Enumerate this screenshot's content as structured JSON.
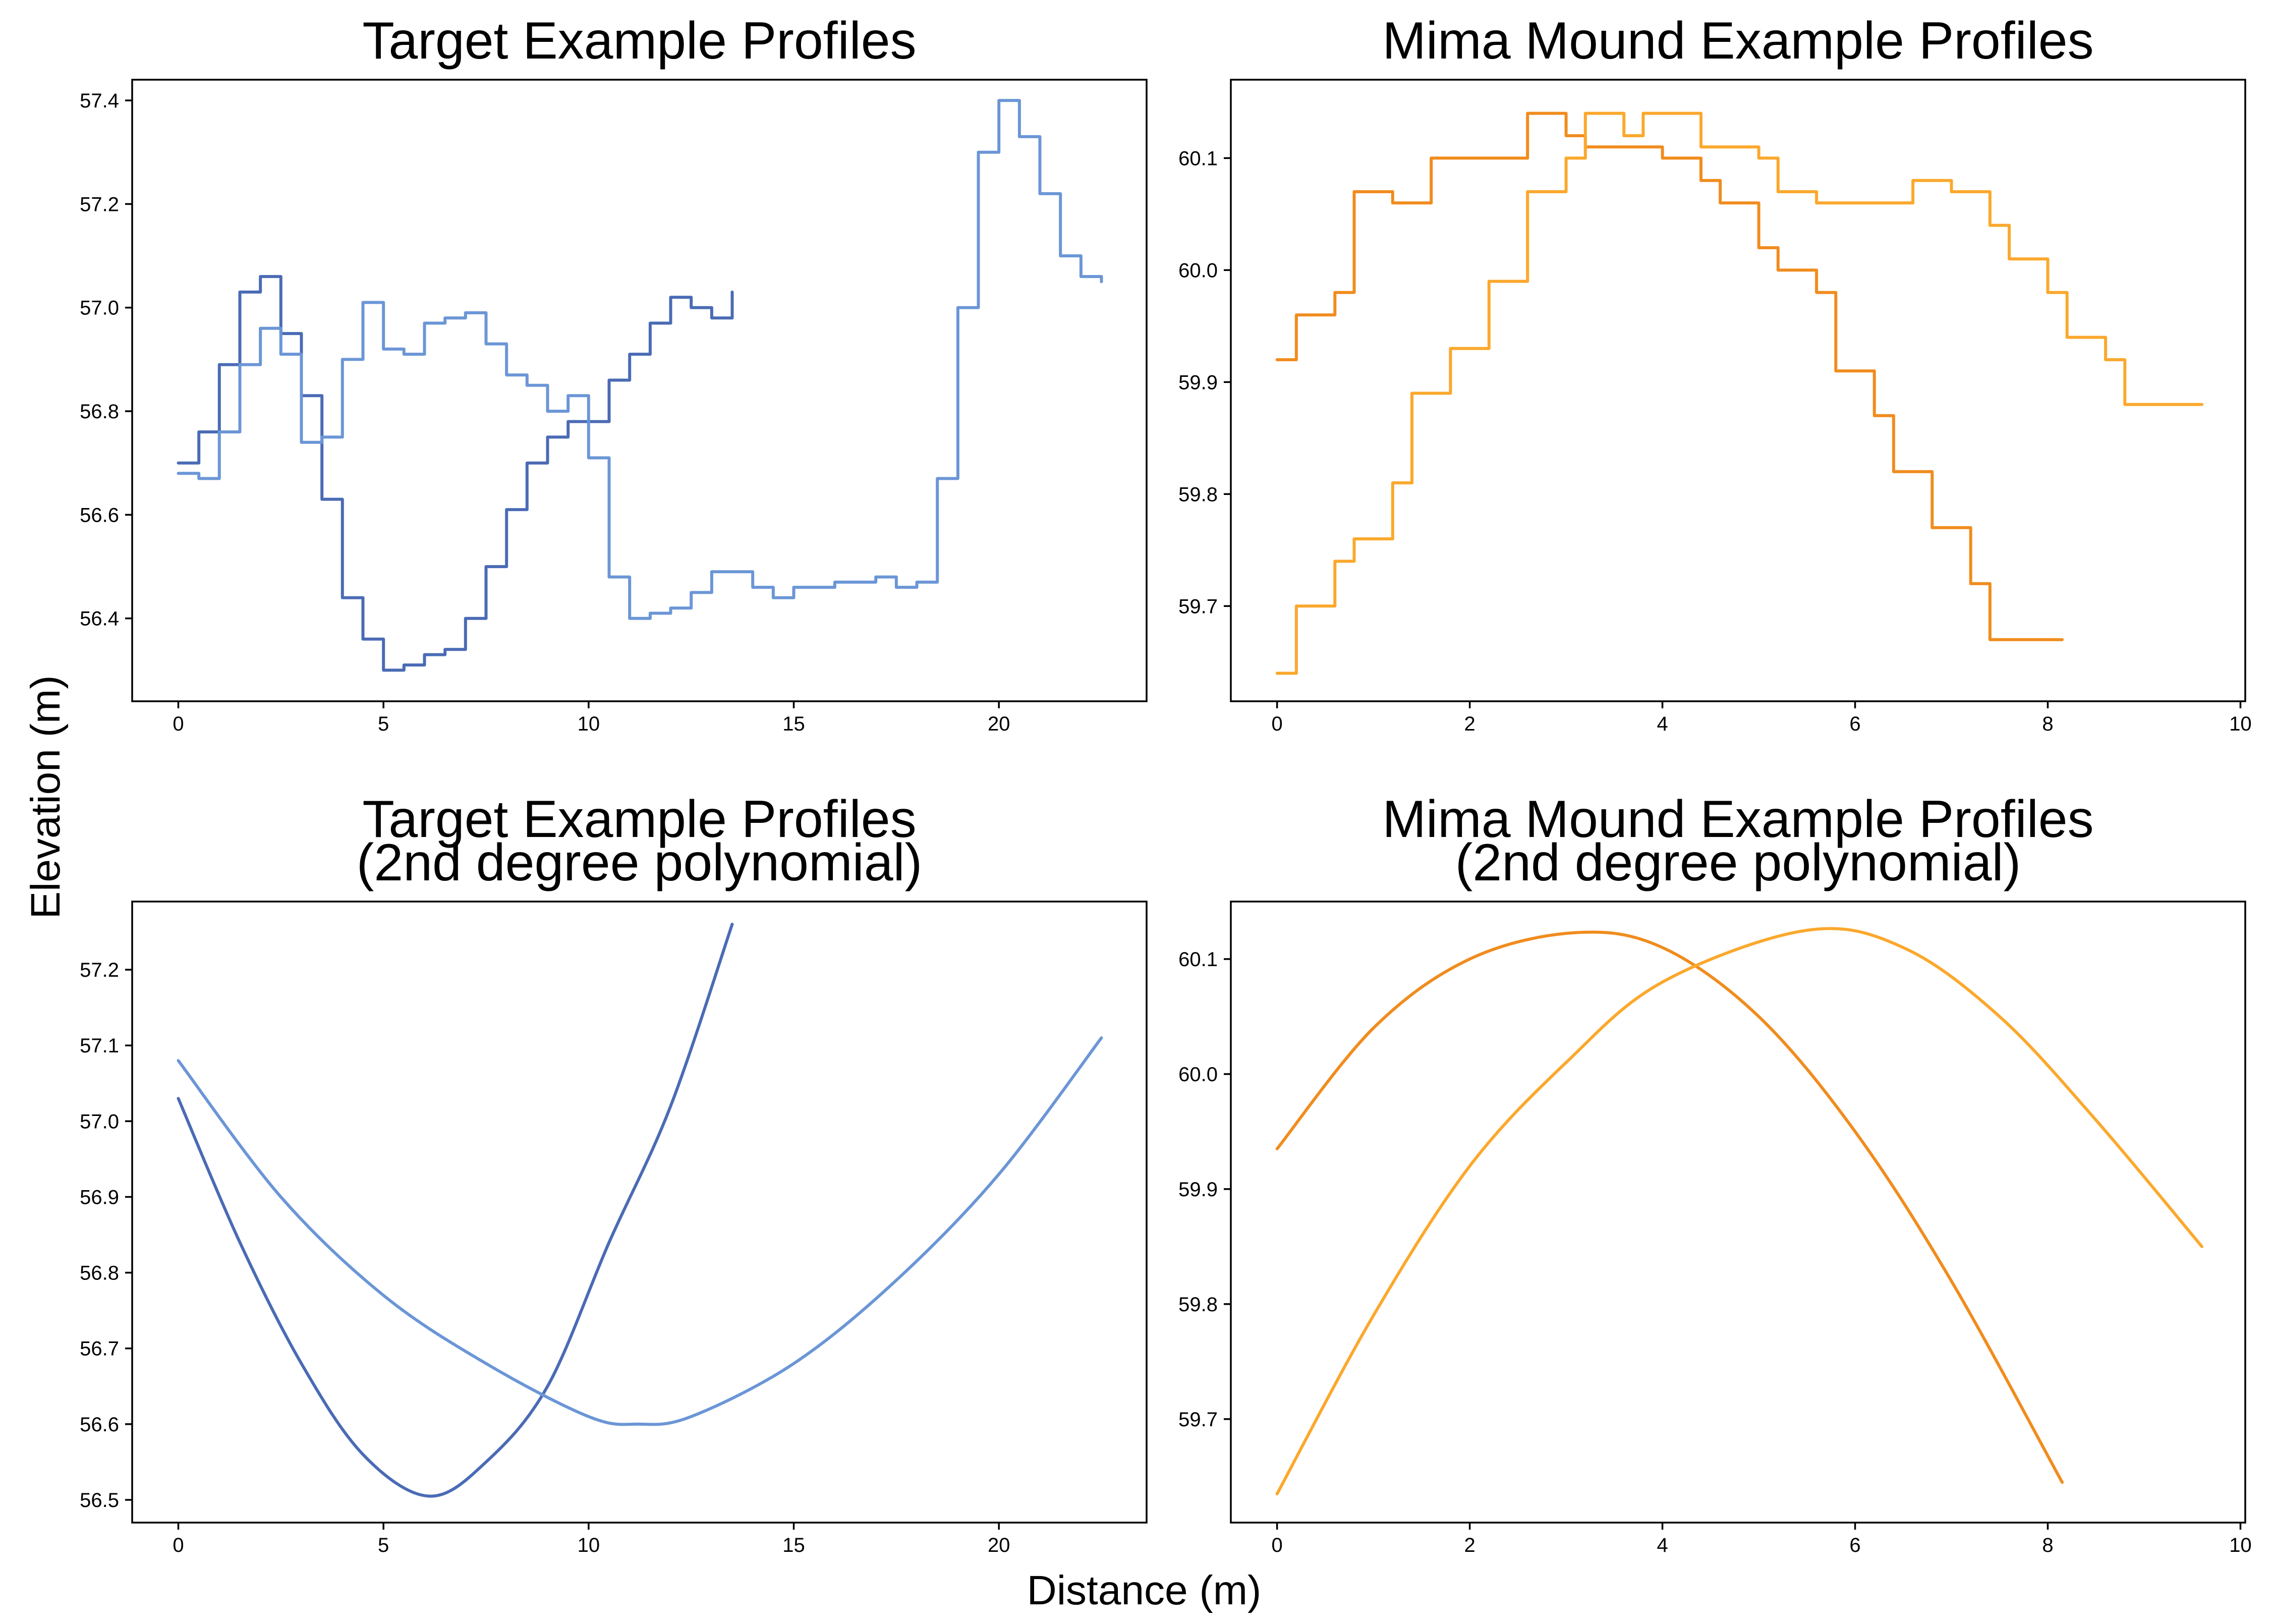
{
  "figure": {
    "xlabel": "Distance (m)",
    "ylabel": "Elevation (m)"
  },
  "chart_data": [
    {
      "type": "line",
      "title": "Target Example Profiles",
      "title_lines": [
        "Target Example Profiles"
      ],
      "xlim": [
        -1.125,
        23.6
      ],
      "ylim": [
        56.24,
        57.44
      ],
      "xticks": [
        0,
        5,
        10,
        15,
        20
      ],
      "yticks": [
        56.4,
        56.6,
        56.8,
        57.0,
        57.2,
        57.4
      ],
      "xtick_labels": [
        "0",
        "5",
        "10",
        "15",
        "20"
      ],
      "ytick_labels": [
        "56.4",
        "56.6",
        "56.8",
        "57.0",
        "57.2",
        "57.4"
      ],
      "series": [
        {
          "color": "#4a6bb5",
          "step": true,
          "x": [
            0,
            0.5,
            1.0,
            1.5,
            2.0,
            2.5,
            3.0,
            3.5,
            4.0,
            4.5,
            5.0,
            5.5,
            6.0,
            6.5,
            7.0,
            7.5,
            8.0,
            8.5,
            9.0,
            9.5,
            10.0,
            10.5,
            11.0,
            11.5,
            12.0,
            12.5,
            13.0,
            13.5
          ],
          "y": [
            56.7,
            56.76,
            56.89,
            57.03,
            57.06,
            56.95,
            56.83,
            56.63,
            56.44,
            56.36,
            56.3,
            56.31,
            56.33,
            56.34,
            56.4,
            56.5,
            56.61,
            56.7,
            56.75,
            56.78,
            56.78,
            56.86,
            56.91,
            56.97,
            57.02,
            57.0,
            56.98,
            57.03
          ]
        },
        {
          "color": "#6b96d6",
          "step": true,
          "x": [
            0,
            0.5,
            1.0,
            1.5,
            2.0,
            2.5,
            3.0,
            3.5,
            4.0,
            4.5,
            5.0,
            5.5,
            6.0,
            6.5,
            7.0,
            7.5,
            8.0,
            8.5,
            9.0,
            9.5,
            10.0,
            10.5,
            11.0,
            11.5,
            12.0,
            12.5,
            13.0,
            13.5,
            14.0,
            14.5,
            15.0,
            15.5,
            16.0,
            16.5,
            17.0,
            17.5,
            18.0,
            18.5,
            19.0,
            19.5,
            20.0,
            20.5,
            21.0,
            21.5,
            22.0,
            22.5
          ],
          "y": [
            56.68,
            56.67,
            56.76,
            56.89,
            56.96,
            56.91,
            56.74,
            56.75,
            56.9,
            57.01,
            56.92,
            56.91,
            56.97,
            56.98,
            56.99,
            56.93,
            56.87,
            56.85,
            56.8,
            56.83,
            56.71,
            56.48,
            56.4,
            56.41,
            56.42,
            56.45,
            56.49,
            56.49,
            56.46,
            56.44,
            56.46,
            56.46,
            56.47,
            56.47,
            56.48,
            56.46,
            56.47,
            56.67,
            57.0,
            57.3,
            57.4,
            57.33,
            57.22,
            57.1,
            57.06,
            57.05
          ]
        }
      ]
    },
    {
      "type": "line",
      "title": "Mima Mound Example Profiles",
      "title_lines": [
        "Mima Mound Example Profiles"
      ],
      "xlim": [
        -0.48,
        10.05
      ],
      "ylim": [
        59.615,
        60.17
      ],
      "xticks": [
        0,
        2,
        4,
        6,
        8,
        10
      ],
      "yticks": [
        59.7,
        59.8,
        59.9,
        60.0,
        60.1
      ],
      "xtick_labels": [
        "0",
        "2",
        "4",
        "6",
        "8",
        "10"
      ],
      "ytick_labels": [
        "59.7",
        "59.8",
        "59.9",
        "60.0",
        "60.1"
      ],
      "series": [
        {
          "color": "#f08c1e",
          "step": true,
          "x": [
            0,
            0.2,
            0.4,
            0.6,
            0.8,
            1.0,
            1.2,
            1.4,
            1.6,
            1.8,
            2.0,
            2.2,
            2.4,
            2.6,
            2.8,
            3.0,
            3.2,
            3.4,
            3.6,
            3.8,
            4.0,
            4.2,
            4.4,
            4.6,
            4.8,
            5.0,
            5.2,
            5.4,
            5.6,
            5.8,
            6.0,
            6.2,
            6.4,
            6.6,
            6.8,
            7.0,
            7.2,
            7.4,
            7.6,
            7.8,
            8.0,
            8.15
          ],
          "y": [
            59.92,
            59.96,
            59.96,
            59.98,
            60.07,
            60.07,
            60.06,
            60.06,
            60.1,
            60.1,
            60.1,
            60.1,
            60.1,
            60.14,
            60.14,
            60.12,
            60.11,
            60.11,
            60.11,
            60.11,
            60.1,
            60.1,
            60.08,
            60.06,
            60.06,
            60.02,
            60.0,
            60.0,
            59.98,
            59.91,
            59.91,
            59.87,
            59.82,
            59.82,
            59.77,
            59.77,
            59.72,
            59.67,
            59.67,
            59.67,
            59.67,
            59.67
          ]
        },
        {
          "color": "#fba82c",
          "step": true,
          "x": [
            0,
            0.2,
            0.4,
            0.6,
            0.8,
            1.0,
            1.2,
            1.4,
            1.6,
            1.8,
            2.0,
            2.2,
            2.4,
            2.6,
            2.8,
            3.0,
            3.2,
            3.4,
            3.6,
            3.8,
            4.0,
            4.2,
            4.4,
            4.6,
            4.8,
            5.0,
            5.2,
            5.4,
            5.6,
            5.8,
            6.0,
            6.2,
            6.4,
            6.6,
            6.8,
            7.0,
            7.2,
            7.4,
            7.6,
            7.8,
            8.0,
            8.2,
            8.4,
            8.6,
            8.8,
            9.0,
            9.2,
            9.4,
            9.6
          ],
          "y": [
            59.64,
            59.7,
            59.7,
            59.74,
            59.76,
            59.76,
            59.81,
            59.89,
            59.89,
            59.93,
            59.93,
            59.99,
            59.99,
            60.07,
            60.07,
            60.1,
            60.14,
            60.14,
            60.12,
            60.14,
            60.14,
            60.14,
            60.11,
            60.11,
            60.11,
            60.1,
            60.07,
            60.07,
            60.06,
            60.06,
            60.06,
            60.06,
            60.06,
            60.08,
            60.08,
            60.07,
            60.07,
            60.04,
            60.01,
            60.01,
            59.98,
            59.94,
            59.94,
            59.92,
            59.88,
            59.88,
            59.88,
            59.88,
            59.88
          ]
        }
      ]
    },
    {
      "type": "line",
      "title": "Target Example Profiles (2nd degree polynomial)",
      "title_lines": [
        "Target Example Profiles",
        "(2nd degree polynomial)"
      ],
      "xlim": [
        -1.125,
        23.6
      ],
      "ylim": [
        56.47,
        57.29
      ],
      "xticks": [
        0,
        5,
        10,
        15,
        20
      ],
      "yticks": [
        56.5,
        56.6,
        56.7,
        56.8,
        56.9,
        57.0,
        57.1,
        57.2
      ],
      "xtick_labels": [
        "0",
        "5",
        "10",
        "15",
        "20"
      ],
      "ytick_labels": [
        "56.5",
        "56.6",
        "56.7",
        "56.8",
        "56.9",
        "57.0",
        "57.1",
        "57.2"
      ],
      "series": [
        {
          "color": "#4a6bb5",
          "step": false,
          "x": [
            0,
            1.5,
            3.0,
            4.5,
            6.1,
            7.5,
            9.0,
            10.5,
            12.0,
            13.5
          ],
          "y": [
            57.03,
            56.84,
            56.68,
            56.56,
            56.505,
            56.55,
            56.65,
            56.84,
            57.02,
            57.26
          ]
        },
        {
          "color": "#6b96d6",
          "step": false,
          "x": [
            0,
            2.5,
            5.0,
            7.5,
            10.0,
            11.2,
            12.5,
            15.0,
            17.5,
            20.0,
            22.5
          ],
          "y": [
            57.08,
            56.9,
            56.77,
            56.68,
            56.61,
            56.6,
            56.61,
            56.68,
            56.79,
            56.93,
            57.11
          ]
        }
      ]
    },
    {
      "type": "line",
      "title": "Mima Mound Example Profiles (2nd degree polynomial)",
      "title_lines": [
        "Mima Mound Example Profiles",
        "(2nd degree polynomial)"
      ],
      "xlim": [
        -0.48,
        10.05
      ],
      "ylim": [
        59.61,
        60.15
      ],
      "xticks": [
        0,
        2,
        4,
        6,
        8,
        10
      ],
      "yticks": [
        59.7,
        59.8,
        59.9,
        60.0,
        60.1
      ],
      "xtick_labels": [
        "0",
        "2",
        "4",
        "6",
        "8",
        "10"
      ],
      "ytick_labels": [
        "59.7",
        "59.8",
        "59.9",
        "60.0",
        "60.1"
      ],
      "series": [
        {
          "color": "#f08c1e",
          "step": false,
          "x": [
            0,
            1.0,
            2.0,
            3.1,
            4.0,
            5.0,
            6.0,
            7.0,
            8.15
          ],
          "y": [
            59.935,
            60.04,
            60.1,
            60.123,
            60.11,
            60.05,
            59.95,
            59.82,
            59.645
          ]
        },
        {
          "color": "#fba82c",
          "step": false,
          "x": [
            0,
            1.0,
            2.0,
            3.0,
            4.0,
            5.5,
            6.5,
            7.5,
            8.5,
            9.6
          ],
          "y": [
            59.635,
            59.79,
            59.92,
            60.01,
            60.08,
            60.125,
            60.11,
            60.05,
            59.96,
            59.85
          ]
        }
      ]
    }
  ]
}
